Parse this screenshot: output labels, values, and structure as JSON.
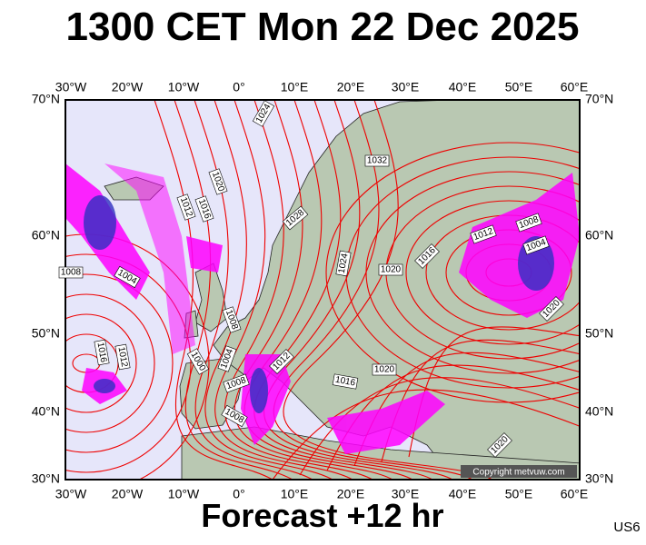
{
  "title": "1300 CET Mon 22 Dec 2025",
  "longitudes": [
    "30°W",
    "20°W",
    "10°W",
    "0°",
    "10°E",
    "20°E",
    "30°E",
    "40°E",
    "50°E",
    "60°E"
  ],
  "latitudes": [
    "70°N",
    "60°N",
    "50°N",
    "40°N",
    "30°N"
  ],
  "isobar_labels": [
    "1024",
    "1032",
    "1020",
    "1016",
    "1012",
    "1028",
    "1024",
    "1020",
    "1016",
    "1012",
    "1008",
    "1004",
    "1020",
    "1008",
    "1004",
    "1016",
    "1012",
    "1008",
    "1004",
    "1000",
    "1012",
    "1008",
    "1016",
    "1020",
    "1008",
    "1020"
  ],
  "copyright": "Copyright metvuw.com",
  "footer": "Forecast +12 hr",
  "code": "US6"
}
